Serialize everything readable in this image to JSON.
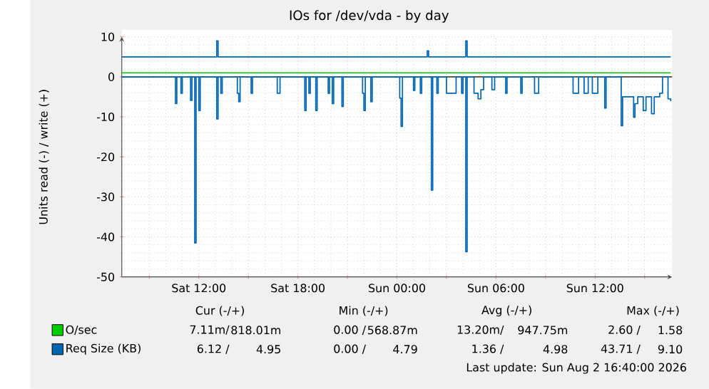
{
  "chart_data": {
    "type": "step",
    "title": "IOs for /dev/vda - by day",
    "ylabel": "Units read (-) / write (+)",
    "xlim": [
      "2026-08-01T07:20",
      "2026-08-02T16:40"
    ],
    "ylim": [
      -50,
      10
    ],
    "xticks": [
      {
        "value": "2026-08-01T09:00",
        "label": null
      },
      {
        "value": "2026-08-01T12:00",
        "label": "Sat 12:00"
      },
      {
        "value": "2026-08-01T15:00",
        "label": null
      },
      {
        "value": "2026-08-01T18:00",
        "label": "Sat 18:00"
      },
      {
        "value": "2026-08-01T21:00",
        "label": null
      },
      {
        "value": "2026-08-02T00:00",
        "label": "Sun 00:00"
      },
      {
        "value": "2026-08-02T03:00",
        "label": null
      },
      {
        "value": "2026-08-02T06:00",
        "label": "Sun 06:00"
      },
      {
        "value": "2026-08-02T09:00",
        "label": null
      },
      {
        "value": "2026-08-02T12:00",
        "label": "Sun 12:00"
      },
      {
        "value": "2026-08-02T15:00",
        "label": null
      }
    ],
    "yticks": [
      -50,
      -40,
      -30,
      -20,
      -10,
      0,
      10
    ],
    "grid": true,
    "legend": "bottom",
    "ref_lines": [
      {
        "axis": "y",
        "value": 0,
        "color": "#000000"
      }
    ],
    "series": [
      {
        "name": "O/sec",
        "color": "#00cc00",
        "x": [
          "2026-08-01T07:20",
          "2026-08-02T16:35"
        ],
        "values": [
          1,
          1
        ]
      },
      {
        "name": "Req Size (KB)",
        "color": "#0066b3",
        "x": [
          "2026-08-01T07:20",
          "2026-08-01T13:05",
          "2026-08-01T13:10",
          "2026-08-02T01:50",
          "2026-08-02T01:55",
          "2026-08-02T04:10",
          "2026-08-02T04:15",
          "2026-08-02T16:35"
        ],
        "values": [
          5,
          9,
          5,
          6.5,
          5,
          9,
          5,
          5
        ]
      },
      {
        "color": "#0066b3",
        "x": [
          "2026-08-01T07:20",
          "2026-08-01T10:35",
          "2026-08-01T10:40",
          "2026-08-01T10:55",
          "2026-08-01T11:00",
          "2026-08-01T11:30",
          "2026-08-01T11:35",
          "2026-08-01T11:45",
          "2026-08-01T11:50",
          "2026-08-01T12:00",
          "2026-08-01T12:05",
          "2026-08-01T13:05",
          "2026-08-01T13:10",
          "2026-08-01T13:20",
          "2026-08-01T13:25",
          "2026-08-01T14:20",
          "2026-08-01T14:25",
          "2026-08-01T14:30",
          "2026-08-01T15:10",
          "2026-08-01T15:15",
          "2026-08-01T16:45",
          "2026-08-01T16:55",
          "2026-08-01T18:25",
          "2026-08-01T18:30",
          "2026-08-01T18:40",
          "2026-08-01T18:45",
          "2026-08-01T19:05",
          "2026-08-01T19:10",
          "2026-08-01T19:50",
          "2026-08-01T19:55",
          "2026-08-01T20:05",
          "2026-08-01T20:10",
          "2026-08-01T20:40",
          "2026-08-01T20:45",
          "2026-08-01T21:55",
          "2026-08-01T22:00",
          "2026-08-01T22:05",
          "2026-08-01T22:25",
          "2026-08-01T22:30",
          "2026-08-02T00:10",
          "2026-08-02T00:15",
          "2026-08-02T00:20",
          "2026-08-02T01:00",
          "2026-08-02T01:05",
          "2026-08-02T01:25",
          "2026-08-02T01:30",
          "2026-08-02T02:05",
          "2026-08-02T02:10",
          "2026-08-02T02:25",
          "2026-08-02T02:30",
          "2026-08-02T03:00",
          "2026-08-02T03:35",
          "2026-08-02T03:55",
          "2026-08-02T04:00",
          "2026-08-02T04:10",
          "2026-08-02T04:15",
          "2026-08-02T04:40",
          "2026-08-02T04:55",
          "2026-08-02T05:05",
          "2026-08-02T05:15",
          "2026-08-02T05:45",
          "2026-08-02T05:55",
          "2026-08-02T06:35",
          "2026-08-02T06:40",
          "2026-08-02T07:30",
          "2026-08-02T07:35",
          "2026-08-02T08:20",
          "2026-08-02T08:35",
          "2026-08-02T10:40",
          "2026-08-02T11:00",
          "2026-08-02T11:20",
          "2026-08-02T11:35",
          "2026-08-02T11:50",
          "2026-08-02T12:10",
          "2026-08-02T12:35",
          "2026-08-02T12:40",
          "2026-08-02T13:35",
          "2026-08-02T13:40",
          "2026-08-02T14:20",
          "2026-08-02T14:25",
          "2026-08-02T14:35",
          "2026-08-02T14:55",
          "2026-08-02T15:05",
          "2026-08-02T15:25",
          "2026-08-02T15:35",
          "2026-08-02T15:55",
          "2026-08-02T16:05",
          "2026-08-02T16:25",
          "2026-08-02T16:35"
        ],
        "values": [
          0,
          -6.7,
          0,
          -4.1,
          0,
          -5.9,
          0,
          -41.5,
          0,
          -8.4,
          0,
          -10.5,
          0,
          -4.1,
          0,
          -4.1,
          -6.2,
          0,
          -4.1,
          0,
          -4.1,
          0,
          -8.4,
          0,
          -4.1,
          0,
          -8.4,
          0,
          -4.1,
          0,
          -6.7,
          0,
          -7.4,
          0,
          -4.1,
          -8.4,
          0,
          -6.2,
          0,
          -5.3,
          -12.4,
          0,
          -3.4,
          0,
          -4.1,
          0,
          -28.3,
          0,
          -4.1,
          0,
          -4.1,
          0,
          -4.1,
          0,
          -43.7,
          0,
          -4.1,
          -5.5,
          -3.2,
          0,
          -3.2,
          0,
          -4.1,
          0,
          -4.1,
          0,
          -4.1,
          0,
          -4.1,
          0,
          -4.1,
          0,
          -4.1,
          0,
          -7.8,
          0,
          -12.2,
          -5.0,
          -10.1,
          -6.7,
          -5.0,
          -8.4,
          -5.0,
          -9.2,
          -5.0,
          -4.1,
          0,
          -5.5,
          -6.1
        ]
      }
    ],
    "annotations": [
      "Cur (-/+)",
      "Min (-/+)",
      "Avg (-/+)",
      "Max (-/+)",
      "7.11m/",
      "818.01m",
      "0.00 /",
      "568.87m",
      "13.20m/",
      "947.75m",
      "2.60 /",
      "1.58",
      "6.12 /",
      "4.95",
      "0.00 /",
      "4.79",
      "1.36 /",
      "4.98",
      "43.71 /",
      "9.10",
      "Last update: Sun Aug  2 16:40:00 2026"
    ]
  }
}
